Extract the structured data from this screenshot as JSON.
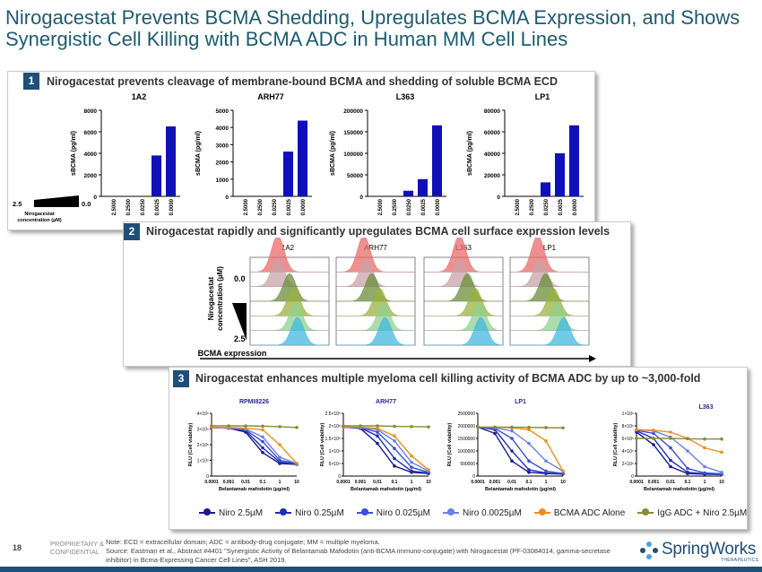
{
  "title": "Nirogacestat Prevents BCMA Shedding, Upregulates BCMA Expression, and Shows Synergistic Cell Killing with BCMA ADC in Human MM Cell Lines",
  "panel1": {
    "number": "1",
    "heading": "Nirogacestat prevents cleavage of membrane-bound BCMA and shedding of soluble BCMA ECD",
    "y_label": "sBCMA (pg/ml)",
    "concentration_high": "2.5",
    "concentration_low": "0.0",
    "concentration_label": "Nirogacestat concentration (µM)"
  },
  "panel2": {
    "number": "2",
    "heading": "Nirogacestat rapidly and significantly upregulates BCMA cell surface expression levels",
    "cell_lines": [
      "1A2",
      "ARH77",
      "L363",
      "LP1"
    ],
    "y_label": "Nirogacestat concentration (µM)",
    "top_value": "0.0",
    "bottom_value": "2.5",
    "x_label": "BCMA expression",
    "histogram_colors": [
      "#e86b6b",
      "#c9a3a8",
      "#6b8e3b",
      "#9ab23f",
      "#8fd08f",
      "#41b8e0"
    ]
  },
  "panel3": {
    "number": "3",
    "heading": "Nirogacestat enhances multiple myeloma cell killing activity of BCMA ADC by up to ~3,000-fold",
    "x_label": "Belantamab mafodotin (µg/ml)",
    "y_label": "RLU (Cell viability)",
    "x_ticks": [
      "0.0001",
      "0.001",
      "0.01",
      "0.1",
      "1",
      "10"
    ]
  },
  "legend": [
    {
      "label": "Niro 2.5µM",
      "color": "#1a1a8c"
    },
    {
      "label": "Niro 0.25µM",
      "color": "#1f2fb0"
    },
    {
      "label": "Niro 0.025µM",
      "color": "#3a4fd6"
    },
    {
      "label": "Niro 0.0025µM",
      "color": "#6a7fe6"
    },
    {
      "label": "BCMA ADC Alone",
      "color": "#e8901e"
    },
    {
      "label": "IgG ADC + Niro 2.5µM",
      "color": "#8a8a3a"
    }
  ],
  "chart_data": [
    {
      "type": "bar",
      "title": "1A2",
      "ylabel": "sBCMA (pg/ml)",
      "categories": [
        "2.5000",
        "0.2500",
        "0.0250",
        "0.0025",
        "0.0000"
      ],
      "values": [
        0,
        0,
        0,
        3800,
        6500
      ],
      "ylim": [
        0,
        8000
      ],
      "y_ticks": [
        "0",
        "2000",
        "4000",
        "6000",
        "8000"
      ]
    },
    {
      "type": "bar",
      "title": "ARH77",
      "ylabel": "sBCMA (pg/ml)",
      "categories": [
        "2.5000",
        "0.2500",
        "0.0250",
        "0.0025",
        "0.0000"
      ],
      "values": [
        0,
        0,
        0,
        2600,
        4400
      ],
      "ylim": [
        0,
        5000
      ],
      "y_ticks": [
        "0",
        "1000",
        "2000",
        "3000",
        "4000",
        "5000"
      ]
    },
    {
      "type": "bar",
      "title": "L363",
      "ylabel": "sBCMA (pg/ml)",
      "categories": [
        "2.5000",
        "0.2500",
        "0.0250",
        "0.0025",
        "0.0000"
      ],
      "values": [
        0,
        0,
        13000,
        40000,
        165000
      ],
      "ylim": [
        0,
        200000
      ],
      "y_ticks": [
        "0",
        "50000",
        "100000",
        "150000",
        "200000"
      ]
    },
    {
      "type": "bar",
      "title": "LP1",
      "ylabel": "sBCMA (pg/ml)",
      "categories": [
        "2.5000",
        "0.2500",
        "0.0250",
        "0.0025",
        "0.0000"
      ],
      "values": [
        0,
        0,
        13000,
        40000,
        66000
      ],
      "ylim": [
        0,
        80000
      ],
      "y_ticks": [
        "0",
        "20000",
        "40000",
        "60000",
        "80000"
      ]
    },
    {
      "type": "line",
      "title": "RPMI8226",
      "xlabel": "Belantamab mafodotin (µg/ml)",
      "ylabel": "RLU (Cell viability)",
      "x": [
        0.0001,
        0.001,
        0.01,
        0.1,
        1,
        10
      ],
      "ylim": [
        0,
        400000.0
      ],
      "y_ticks": [
        "0",
        "1×10⁵",
        "2×10⁵",
        "3×10⁵",
        "4×10⁵"
      ],
      "series": [
        {
          "name": "Niro 2.5µM",
          "values": [
            310000,
            305000,
            280000,
            150000,
            80000,
            75000
          ]
        },
        {
          "name": "Niro 0.25µM",
          "values": [
            310000,
            305000,
            290000,
            180000,
            90000,
            75000
          ]
        },
        {
          "name": "Niro 0.025µM",
          "values": [
            310000,
            305000,
            295000,
            220000,
            100000,
            80000
          ]
        },
        {
          "name": "Niro 0.0025µM",
          "values": [
            310000,
            305000,
            300000,
            250000,
            120000,
            80000
          ]
        },
        {
          "name": "BCMA ADC Alone",
          "values": [
            310000,
            310000,
            305000,
            295000,
            200000,
            80000
          ]
        },
        {
          "name": "IgG ADC + Niro 2.5µM",
          "values": [
            320000,
            320000,
            320000,
            318000,
            315000,
            310000
          ]
        }
      ]
    },
    {
      "type": "line",
      "title": "ARH77",
      "xlabel": "Belantamab mafodotin (µg/ml)",
      "ylabel": "RLU (Cell viability)",
      "x": [
        0.0001,
        0.001,
        0.01,
        0.1,
        1,
        10
      ],
      "ylim": [
        0,
        250000.0
      ],
      "y_ticks": [
        "0",
        "5×10⁴",
        "1×10⁵",
        "1.5×10⁵",
        "2×10⁵",
        "2.5×10⁵"
      ],
      "series": [
        {
          "name": "Niro 2.5µM",
          "values": [
            195000,
            190000,
            130000,
            40000,
            15000,
            10000
          ]
        },
        {
          "name": "Niro 0.25µM",
          "values": [
            195000,
            192000,
            160000,
            70000,
            20000,
            12000
          ]
        },
        {
          "name": "Niro 0.025µM",
          "values": [
            195000,
            193000,
            175000,
            110000,
            35000,
            15000
          ]
        },
        {
          "name": "Niro 0.0025µM",
          "values": [
            195000,
            194000,
            185000,
            140000,
            55000,
            20000
          ]
        },
        {
          "name": "BCMA ADC Alone",
          "values": [
            195000,
            195000,
            190000,
            160000,
            80000,
            25000
          ]
        },
        {
          "name": "IgG ADC + Niro 2.5µM",
          "values": [
            200000,
            200000,
            200000,
            198000,
            197000,
            196000
          ]
        }
      ]
    },
    {
      "type": "line",
      "title": "LP1",
      "xlabel": "Belantamab mafodotin (µg/ml)",
      "ylabel": "RLU (Cell viability)",
      "x": [
        0.0001,
        0.001,
        0.01,
        0.1,
        1,
        10
      ],
      "ylim": [
        0,
        2500000
      ],
      "y_ticks": [
        "0",
        "500000",
        "1000000",
        "1500000",
        "2000000",
        "2500000"
      ],
      "series": [
        {
          "name": "Niro 2.5µM",
          "values": [
            1950000,
            1700000,
            600000,
            150000,
            100000,
            80000
          ]
        },
        {
          "name": "Niro 0.25µM",
          "values": [
            1950000,
            1850000,
            1000000,
            250000,
            120000,
            90000
          ]
        },
        {
          "name": "Niro 0.025µM",
          "values": [
            1950000,
            1900000,
            1500000,
            600000,
            200000,
            100000
          ]
        },
        {
          "name": "Niro 0.0025µM",
          "values": [
            1950000,
            1920000,
            1800000,
            1300000,
            600000,
            200000
          ]
        },
        {
          "name": "BCMA ADC Alone",
          "values": [
            1950000,
            1950000,
            1920000,
            1850000,
            1400000,
            200000
          ]
        },
        {
          "name": "IgG ADC + Niro 2.5µM",
          "values": [
            1950000,
            1950000,
            1950000,
            1940000,
            1930000,
            1920000
          ]
        }
      ]
    },
    {
      "type": "line",
      "title": "L363",
      "xlabel": "Belantamab mafodotin (µg/ml)",
      "ylabel": "RLU (Cell viability)",
      "x": [
        0.0001,
        0.001,
        0.01,
        0.1,
        1,
        10
      ],
      "ylim": [
        0,
        1000000.0
      ],
      "y_ticks": [
        "0",
        "2×10⁵",
        "4×10⁵",
        "6×10⁵",
        "8×10⁵",
        "1×10⁶"
      ],
      "series": [
        {
          "name": "Niro 2.5µM",
          "values": [
            700000,
            500000,
            150000,
            40000,
            30000,
            25000
          ]
        },
        {
          "name": "Niro 0.25µM",
          "values": [
            720000,
            600000,
            250000,
            60000,
            35000,
            30000
          ]
        },
        {
          "name": "Niro 0.025µM",
          "values": [
            730000,
            680000,
            450000,
            120000,
            50000,
            35000
          ]
        },
        {
          "name": "Niro 0.0025µM",
          "values": [
            740000,
            720000,
            620000,
            400000,
            150000,
            60000
          ]
        },
        {
          "name": "BCMA ADC Alone",
          "values": [
            740000,
            730000,
            700000,
            600000,
            450000,
            380000
          ]
        },
        {
          "name": "IgG ADC + Niro 2.5µM",
          "values": [
            600000,
            600000,
            600000,
            595000,
            590000,
            590000
          ]
        }
      ]
    }
  ],
  "footer": {
    "page_number": "18",
    "proprietary": "PROPRIETARY &",
    "confidential": "CONFIDENTIAL",
    "note": "Note: ECD = extracellular domain; ADC = antibody-drug conjugate; MM = multiple myeloma.",
    "source": "Source: Eastman et al., Abstract #4401 \"Synergistic Activity of Belantamab Mafodotin (anti-BCMA immuno-conjugate) with Nirogacestat (PF-03084014, gamma-secretase inhibitor) in Bcma-Expressing Cancer Cell Lines\", ASH 2019.",
    "logo_text": "SpringWorks",
    "logo_sub": "THERAPEUTICS"
  }
}
